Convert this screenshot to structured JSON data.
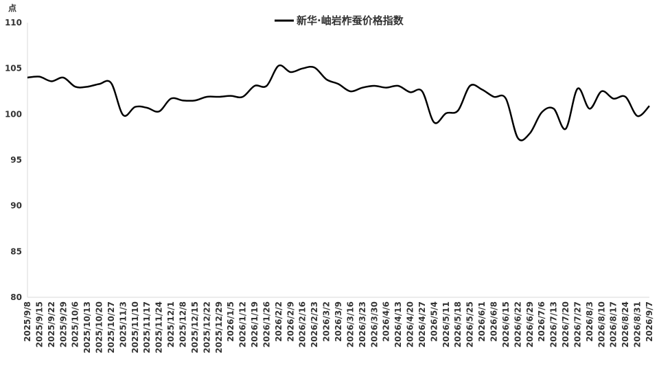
{
  "chart_data": {
    "type": "line",
    "y_label": "点",
    "categories": [
      "2025/9/8",
      "2025/9/15",
      "2025/9/22",
      "2025/9/29",
      "2025/10/6",
      "2025/10/13",
      "2025/10/20",
      "2025/10/27",
      "2025/11/3",
      "2025/11/10",
      "2025/11/17",
      "2025/11/24",
      "2025/12/1",
      "2025/12/8",
      "2025/12/15",
      "2025/12/22",
      "2025/12/29",
      "2026/1/5",
      "2026/1/12",
      "2026/1/19",
      "2026/1/26",
      "2026/2/2",
      "2026/2/9",
      "2026/2/16",
      "2026/2/23",
      "2026/3/2",
      "2026/3/9",
      "2026/3/16",
      "2026/3/23",
      "2026/3/30",
      "2026/4/6",
      "2026/4/13",
      "2026/4/20",
      "2026/4/27",
      "2026/5/4",
      "2026/5/11",
      "2026/5/18",
      "2026/5/25",
      "2026/6/1",
      "2026/6/8",
      "2026/6/15",
      "2026/6/22",
      "2026/6/29",
      "2026/7/6",
      "2026/7/13",
      "2026/7/20",
      "2026/7/27",
      "2026/8/3",
      "2026/8/10",
      "2026/8/17",
      "2026/8/24",
      "2026/8/31",
      "2026/9/7"
    ],
    "series": [
      {
        "name": "新华·岫岩柞蚕价格指数",
        "color": "#000000",
        "values": [
          104.0,
          104.1,
          103.6,
          104.0,
          103.0,
          103.0,
          103.3,
          103.4,
          99.9,
          100.8,
          100.7,
          100.3,
          101.7,
          101.5,
          101.5,
          101.9,
          101.9,
          102.0,
          101.9,
          103.1,
          103.1,
          105.3,
          104.6,
          105.0,
          105.1,
          103.8,
          103.3,
          102.5,
          102.9,
          103.1,
          102.9,
          103.1,
          102.4,
          102.5,
          99.1,
          100.1,
          100.4,
          103.1,
          102.7,
          101.9,
          101.7,
          97.4,
          97.9,
          100.2,
          100.6,
          98.4,
          102.8,
          100.6,
          102.5,
          101.7,
          101.9,
          99.8,
          100.9
        ]
      }
    ],
    "ylim": [
      80,
      110
    ],
    "yticks": [
      80,
      85,
      90,
      95,
      100,
      105,
      110
    ],
    "grid": false,
    "legend": "top"
  }
}
